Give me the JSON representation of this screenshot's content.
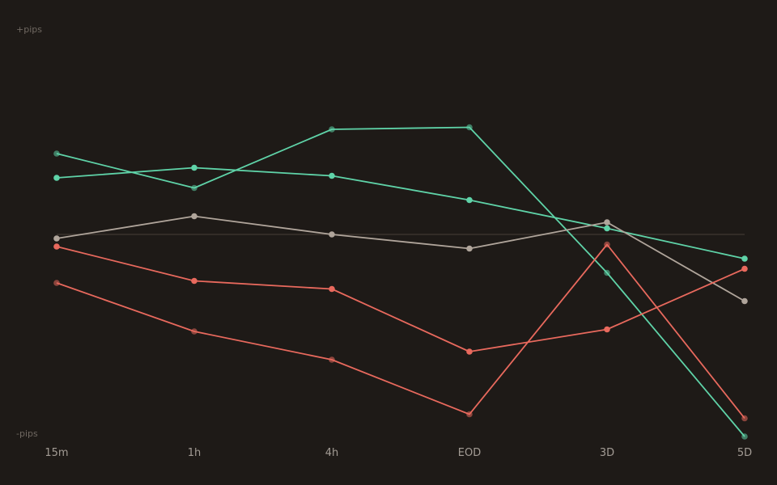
{
  "chart_data": {
    "type": "line",
    "ylabel_top": "+pips",
    "ylabel_bottom": "-pips",
    "categories": [
      "15m",
      "1h",
      "4h",
      "EOD",
      "3D",
      "5D"
    ],
    "ylim": [
      -100,
      100
    ],
    "baseline": 0,
    "grid": false,
    "legend": "none",
    "series": [
      {
        "color": "#5fd3a8",
        "muted": false,
        "values": [
          28,
          33,
          29,
          17,
          3,
          -12
        ]
      },
      {
        "color": "#5fd3a8",
        "muted": true,
        "values": [
          40,
          23,
          52,
          53,
          -19,
          -100
        ]
      },
      {
        "color": "#b0a59b",
        "muted": false,
        "values": [
          -2,
          9,
          0,
          -7,
          6,
          -33
        ]
      },
      {
        "color": "#e8695d",
        "muted": false,
        "values": [
          -6,
          -23,
          -27,
          -58,
          -47,
          -17
        ]
      },
      {
        "color": "#e8695d",
        "muted": true,
        "values": [
          -24,
          -48,
          -62,
          -89,
          -5,
          -91
        ]
      }
    ]
  }
}
